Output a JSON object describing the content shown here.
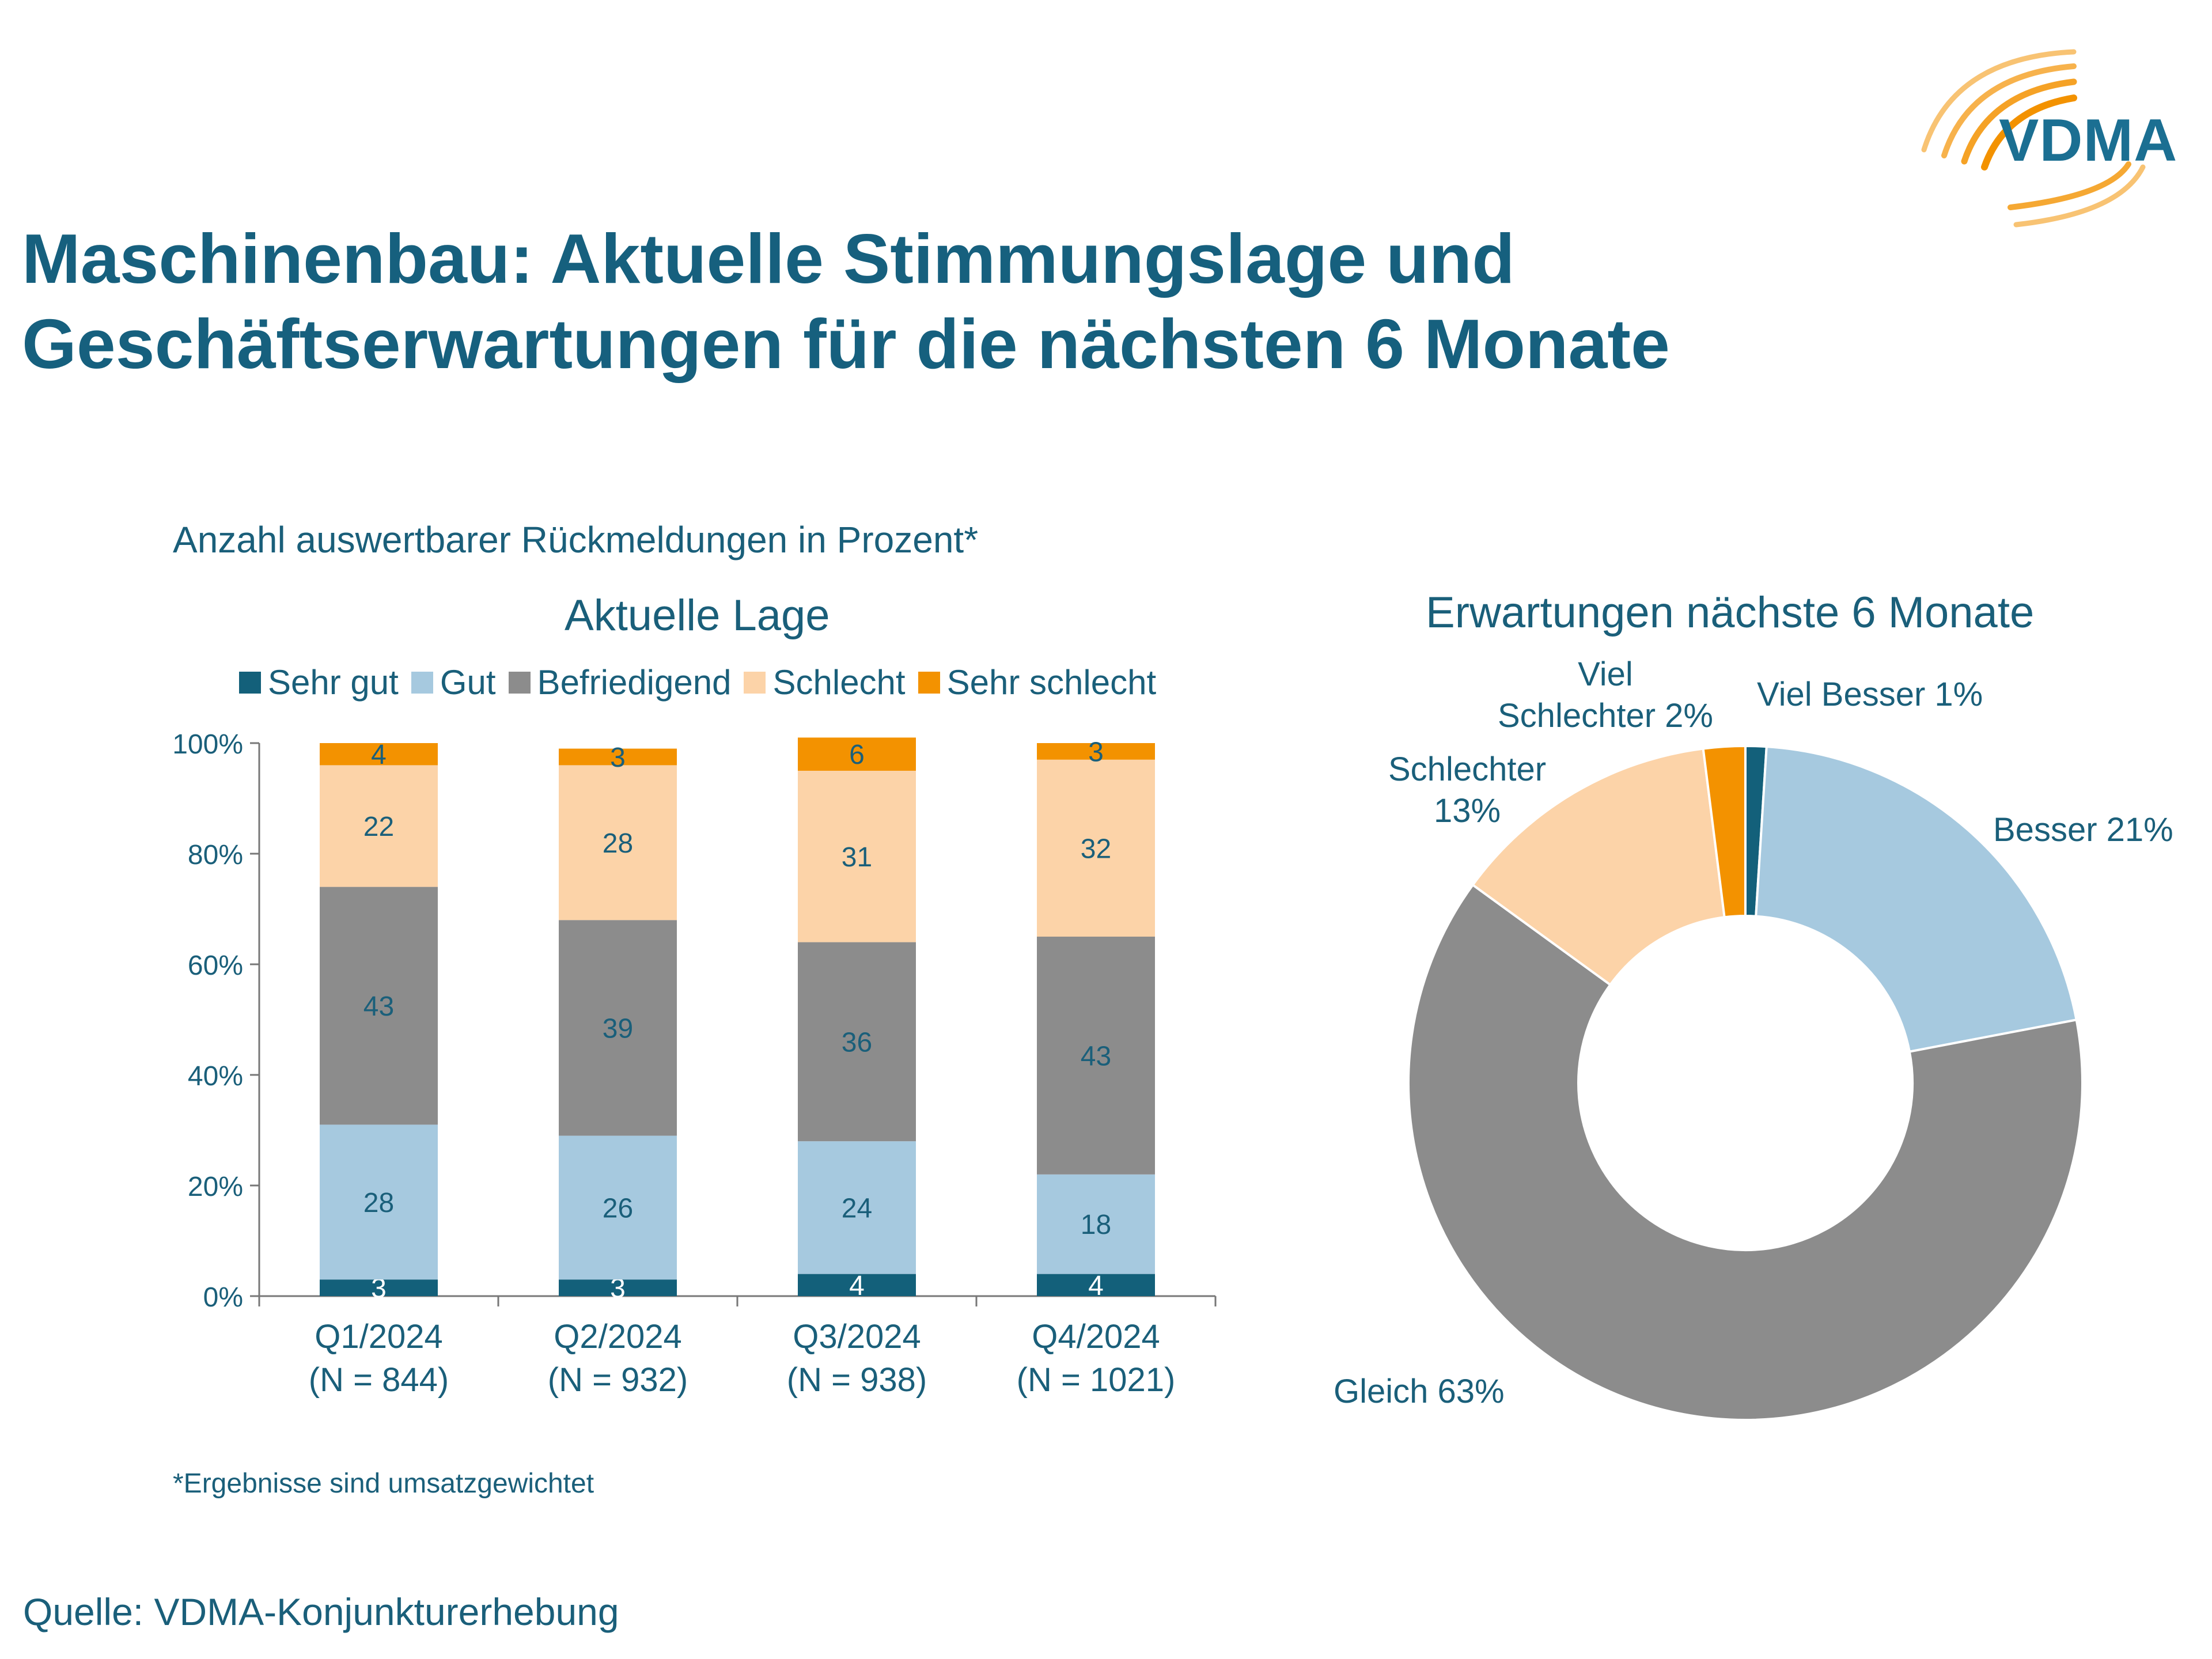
{
  "header": {
    "title_line1": "Maschinenbau: Aktuelle Stimmungslage und",
    "title_line2": "Geschäftserwartungen für die nächsten 6 Monate",
    "logo_text": "VDMA"
  },
  "subtitle": "Anzahl auswertbarer Rückmeldungen in Prozent*",
  "footnote": "*Ergebnisse sind umsatzgewichtet",
  "source": "Quelle: VDMA-Konjunkturerhebung",
  "colors": {
    "sehr_gut": "#13607a",
    "gut": "#a6c9df",
    "befriedigend": "#8c8c8c",
    "schlecht": "#fcd3a8",
    "sehr_schlecht": "#f39200",
    "title": "#16607e",
    "text": "#1a5f7a"
  },
  "chart_data": [
    {
      "type": "bar",
      "stacked": true,
      "title": "Aktuelle Lage",
      "categories": [
        "Q1/2024",
        "Q2/2024",
        "Q3/2024",
        "Q4/2024"
      ],
      "category_sublabels": [
        "(N = 844)",
        "(N = 932)",
        "(N = 938)",
        "(N = 1021)"
      ],
      "series": [
        {
          "name": "Sehr gut",
          "values": [
            3,
            3,
            4,
            4
          ]
        },
        {
          "name": "Gut",
          "values": [
            28,
            26,
            24,
            18
          ]
        },
        {
          "name": "Befriedigend",
          "values": [
            43,
            39,
            36,
            43
          ]
        },
        {
          "name": "Schlecht",
          "values": [
            22,
            28,
            31,
            32
          ]
        },
        {
          "name": "Sehr schlecht",
          "values": [
            4,
            3,
            6,
            3
          ]
        }
      ],
      "yticks": [
        "0%",
        "20%",
        "40%",
        "60%",
        "80%",
        "100%"
      ],
      "ylim": [
        0,
        100
      ],
      "legend_position": "top"
    },
    {
      "type": "pie",
      "donut": true,
      "title": "Erwartungen nächste 6 Monate",
      "slices": [
        {
          "name": "Viel Besser",
          "value": 1,
          "label": "Viel Besser 1%"
        },
        {
          "name": "Besser",
          "value": 21,
          "label": "Besser 21%"
        },
        {
          "name": "Gleich",
          "value": 63,
          "label": "Gleich  63%"
        },
        {
          "name": "Schlechter",
          "value": 13,
          "label_line1": "Schlechter",
          "label_line2": "13%"
        },
        {
          "name": "Viel Schlechter",
          "value": 2,
          "label_line1": "Viel",
          "label_line2": "Schlechter 2%"
        }
      ]
    }
  ]
}
